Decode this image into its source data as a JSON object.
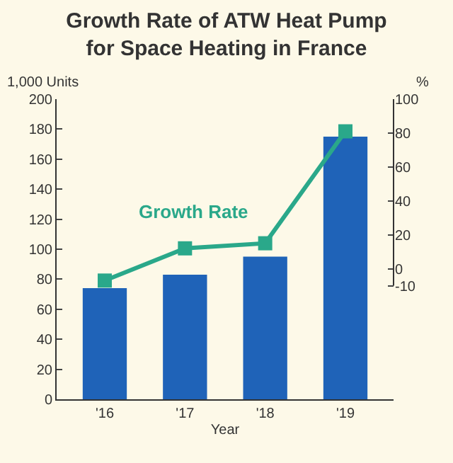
{
  "chart_data": {
    "type": "bar",
    "title": "Growth Rate of ATW Heat Pump\nfor Space Heating in France",
    "xlabel": "Year",
    "ylabel": "1,000 Units",
    "y2label": "%",
    "categories": [
      "'16",
      "'17",
      "'18",
      "'19"
    ],
    "series": [
      {
        "color": "#1f63b8",
        "values": [
          74,
          83,
          95,
          175
        ]
      },
      {
        "type": "line",
        "name": "Growth Rate",
        "axis": "y2",
        "color": "#2aa88a",
        "values": [
          -7,
          12,
          15,
          81
        ]
      }
    ],
    "ylim": [
      0,
      200
    ],
    "yticks": [
      0,
      20,
      40,
      60,
      80,
      100,
      120,
      140,
      160,
      180,
      200
    ],
    "y2lim": [
      -77,
      100
    ],
    "y2ticks": [
      -10,
      0,
      20,
      40,
      60,
      80,
      100
    ],
    "marker": "square",
    "grid": false,
    "legend": false
  }
}
